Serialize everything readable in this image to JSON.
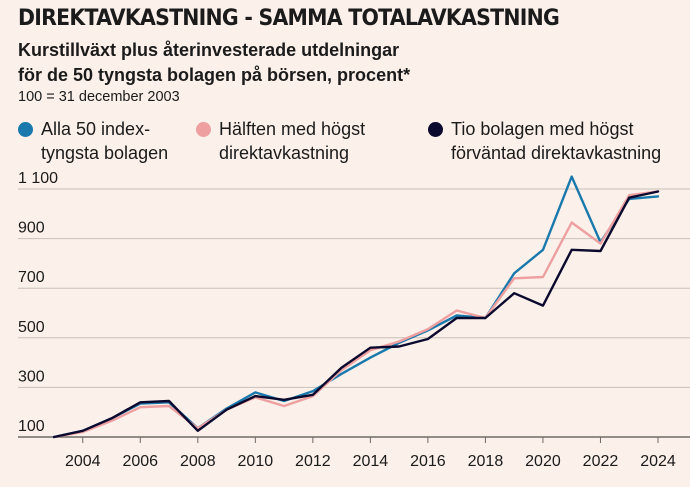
{
  "header": {
    "title": "DIREKTAVKASTNING - SAMMA TOTALAVKASTNING",
    "subtitle_line1": "Kurstillväxt plus återinvesterade utdelningar",
    "subtitle_line2": "för de 50 tyngsta bolagen på börsen, procent*",
    "note": "100 = 31 december 2003"
  },
  "legend": [
    {
      "line1": "Alla 50 index-",
      "line2": "tyngsta bolagen",
      "color": "#1a79ac"
    },
    {
      "line1": "Hälften med högst",
      "line2": "direktavkastning",
      "color": "#eea0a1"
    },
    {
      "line1": "Tio bolagen med högst",
      "line2": "förväntad direktavkastning",
      "color": "#0b0a2e"
    }
  ],
  "chart_data": {
    "type": "line",
    "title": "DIREKTAVKASTNING - SAMMA TOTALAVKASTNING",
    "xlabel": "",
    "ylabel": "",
    "xlim": [
      2003,
      2024
    ],
    "ylim": [
      100,
      1100
    ],
    "y_ticks": [
      100,
      300,
      500,
      700,
      900,
      1100
    ],
    "y_tick_labels": [
      "100",
      "300",
      "500",
      "700",
      "900",
      "1 100"
    ],
    "x_ticks": [
      2004,
      2006,
      2008,
      2010,
      2012,
      2014,
      2016,
      2018,
      2020,
      2022,
      2024
    ],
    "x_tick_labels": [
      "2004",
      "2006",
      "2008",
      "2010",
      "2012",
      "2014",
      "2016",
      "2018",
      "2020",
      "2022",
      "2024"
    ],
    "x": [
      2003,
      2004,
      2005,
      2006,
      2007,
      2008,
      2009,
      2010,
      2011,
      2012,
      2013,
      2014,
      2015,
      2016,
      2017,
      2018,
      2019,
      2020,
      2021,
      2022,
      2023,
      2024
    ],
    "series": [
      {
        "name": "Alla 50 indextyngsta bolagen",
        "color": "#1a79ac",
        "values": [
          100,
          125,
          175,
          235,
          240,
          135,
          215,
          280,
          245,
          285,
          355,
          420,
          480,
          530,
          590,
          580,
          760,
          855,
          1150,
          885,
          1060,
          1070
        ]
      },
      {
        "name": "Hälften med högst direktavkastning",
        "color": "#eea0a1",
        "values": [
          100,
          120,
          165,
          220,
          225,
          135,
          210,
          260,
          225,
          265,
          370,
          450,
          485,
          535,
          610,
          580,
          740,
          745,
          965,
          880,
          1075,
          1090
        ]
      },
      {
        "name": "Tio bolagen med högst förväntad direktavkastning",
        "color": "#0b0a2e",
        "values": [
          100,
          125,
          175,
          240,
          245,
          125,
          210,
          265,
          250,
          270,
          380,
          460,
          465,
          495,
          580,
          580,
          680,
          630,
          855,
          850,
          1065,
          1090
        ]
      }
    ]
  }
}
